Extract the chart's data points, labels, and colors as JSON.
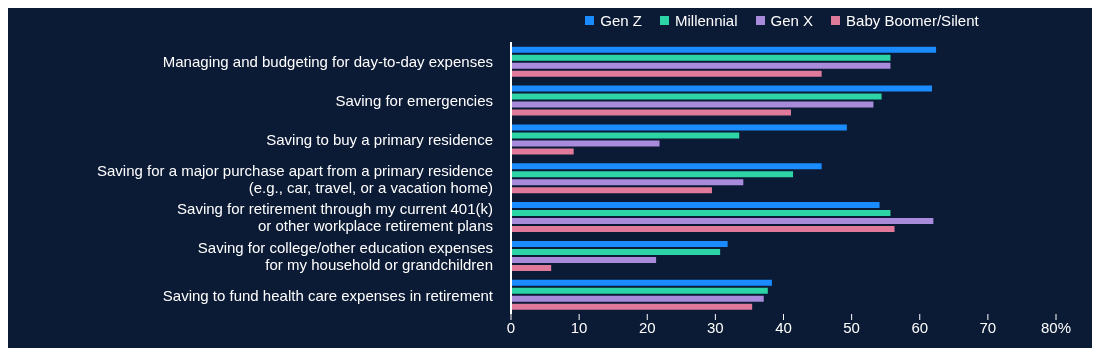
{
  "chart_data": {
    "type": "bar",
    "orientation": "horizontal",
    "categories": [
      "Managing and budgeting for day-to-day expenses",
      "Saving for emergencies",
      "Saving to buy a primary residence",
      "Saving for a major purchase apart from a primary residence\n(e.g., car, travel, or a vacation home)",
      "Saving for retirement through my current 401(k)\nor other workplace retirement plans",
      "Saving for college/other education expenses\nfor my household or grandchildren",
      "Saving to fund health care expenses in retirement"
    ],
    "series": [
      {
        "name": "Gen Z",
        "color": "#1a8cff",
        "values": [
          62.4,
          61.8,
          49.3,
          45.6,
          54.1,
          31.8,
          38.3
        ]
      },
      {
        "name": "Millennial",
        "color": "#2dd4a6",
        "values": [
          55.7,
          54.4,
          33.5,
          41.4,
          55.7,
          30.7,
          37.7
        ]
      },
      {
        "name": "Gen X",
        "color": "#a98bdb",
        "values": [
          55.7,
          53.2,
          21.8,
          34.1,
          62.0,
          21.3,
          37.1
        ]
      },
      {
        "name": "Baby Boomer/Silent",
        "color": "#e07a9b",
        "values": [
          45.6,
          41.1,
          9.2,
          29.5,
          56.3,
          5.9,
          35.4
        ]
      }
    ],
    "xlim": [
      0,
      80
    ],
    "xticks": [
      0,
      10,
      20,
      30,
      40,
      50,
      60,
      70,
      {
        "value": 80,
        "label": "80%"
      }
    ],
    "grid": false,
    "legend": "top"
  }
}
